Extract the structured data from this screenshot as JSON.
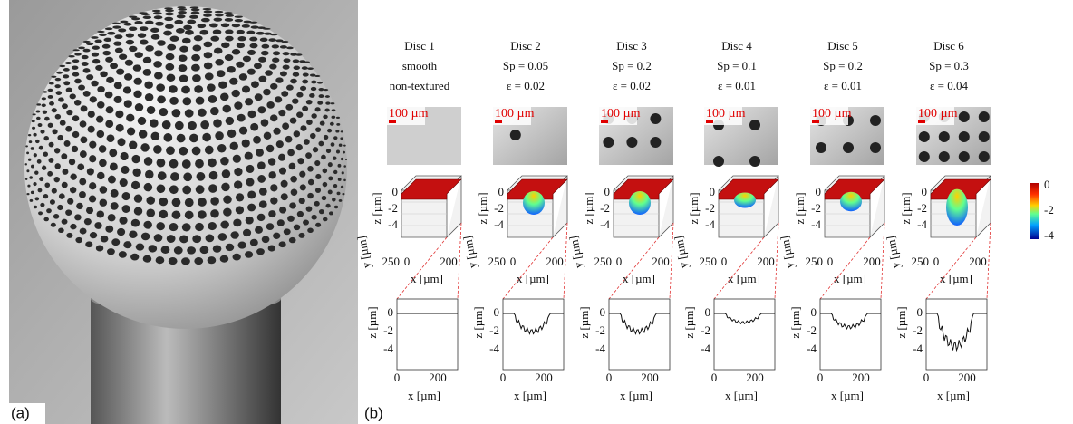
{
  "panel_a": {
    "label": "(a)"
  },
  "panel_b": {
    "label": "(b)",
    "discs": [
      {
        "name": "Disc 1",
        "lines": [
          "smooth",
          "non-textured"
        ],
        "scale_bar": "100 µm"
      },
      {
        "name": "Disc 2",
        "lines": [
          "Sp = 0.05",
          "ε = 0.02"
        ],
        "scale_bar": "100 µm"
      },
      {
        "name": "Disc 3",
        "lines": [
          "Sp = 0.2",
          "ε = 0.02"
        ],
        "scale_bar": "100 µm"
      },
      {
        "name": "Disc 4",
        "lines": [
          "Sp = 0.1",
          "ε = 0.01"
        ],
        "scale_bar": "100 µm"
      },
      {
        "name": "Disc 5",
        "lines": [
          "Sp = 0.2",
          "ε = 0.01"
        ],
        "scale_bar": "100 µm"
      },
      {
        "name": "Disc 6",
        "lines": [
          "Sp = 0.3",
          "ε = 0.04"
        ],
        "scale_bar": "100 µm"
      }
    ],
    "surface_plot": {
      "z_label": "z [µm]",
      "y_label": "y [µm]",
      "x_label": "x [µm]",
      "z_ticks": [
        0,
        -2,
        -4
      ],
      "y_ticks": [
        250
      ],
      "x_ticks": [
        0,
        200
      ]
    },
    "profile_plot": {
      "z_label": "z [µm]",
      "x_label": "x [µm]",
      "z_ticks": [
        0,
        -2,
        -4
      ],
      "x_ticks": [
        0,
        200
      ]
    },
    "colorbar": {
      "ticks": [
        0,
        -2,
        -4
      ]
    }
  }
}
